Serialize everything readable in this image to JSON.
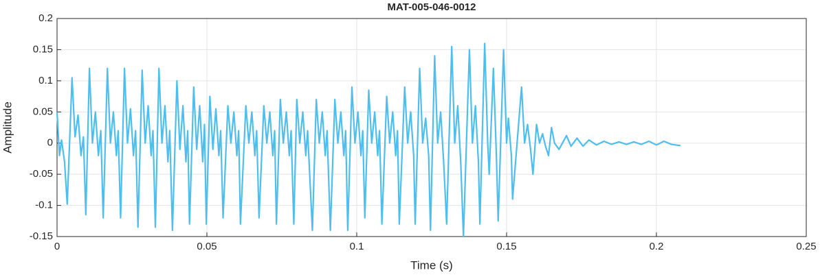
{
  "chart_data": {
    "type": "line",
    "title": "MAT-005-046-0012",
    "x_label": "Time (s)",
    "y_label": "Amplitude",
    "color": "#4dbeee",
    "grid": true,
    "xlim": [
      0,
      0.25
    ],
    "xticks": [
      0,
      0.05,
      0.1,
      0.15,
      0.2,
      0.25
    ],
    "ylim": [
      -0.15,
      0.2
    ],
    "yticks": [
      -0.15,
      -0.1,
      -0.05,
      0,
      0.05,
      0.1,
      0.15,
      0.2
    ],
    "x": [
      0,
      0.0008,
      0.0015,
      0.0025,
      0.0034,
      0.005,
      0.006,
      0.007,
      0.008,
      0.0088,
      0.0096,
      0.0108,
      0.0118,
      0.0128,
      0.0138,
      0.0146,
      0.0154,
      0.0168,
      0.0178,
      0.0188,
      0.0198,
      0.0204,
      0.0212,
      0.0225,
      0.0235,
      0.0245,
      0.0255,
      0.0262,
      0.027,
      0.0284,
      0.0294,
      0.0304,
      0.0314,
      0.032,
      0.0328,
      0.034,
      0.035,
      0.036,
      0.037,
      0.0376,
      0.0385,
      0.04,
      0.041,
      0.042,
      0.043,
      0.0436,
      0.0442,
      0.0456,
      0.0466,
      0.0476,
      0.0486,
      0.0492,
      0.0498,
      0.051,
      0.052,
      0.053,
      0.054,
      0.0546,
      0.0554,
      0.057,
      0.058,
      0.059,
      0.06,
      0.0606,
      0.0612,
      0.063,
      0.064,
      0.065,
      0.066,
      0.0666,
      0.0674,
      0.069,
      0.07,
      0.071,
      0.072,
      0.0726,
      0.0732,
      0.0745,
      0.0755,
      0.0765,
      0.0775,
      0.0781,
      0.079,
      0.08,
      0.081,
      0.082,
      0.083,
      0.0836,
      0.0852,
      0.0865,
      0.0875,
      0.0885,
      0.0895,
      0.0901,
      0.0912,
      0.0927,
      0.0937,
      0.0947,
      0.0957,
      0.0963,
      0.097,
      0.0984,
      0.0994,
      0.1004,
      0.1014,
      0.102,
      0.1027,
      0.104,
      0.105,
      0.106,
      0.107,
      0.1076,
      0.1084,
      0.11,
      0.111,
      0.112,
      0.113,
      0.1136,
      0.1142,
      0.116,
      0.117,
      0.118,
      0.119,
      0.1195,
      0.121,
      0.122,
      0.123,
      0.124,
      0.1246,
      0.126,
      0.127,
      0.128,
      0.129,
      0.13,
      0.1317,
      0.1327,
      0.1337,
      0.1347,
      0.1356,
      0.1376,
      0.1386,
      0.1396,
      0.1406,
      0.1411,
      0.1427,
      0.1437,
      0.1442,
      0.1456,
      0.1466,
      0.1472,
      0.149,
      0.15,
      0.1506,
      0.1516,
      0.152,
      0.155,
      0.156,
      0.157,
      0.158,
      0.1588,
      0.16,
      0.161,
      0.162,
      0.163,
      0.164,
      0.165,
      0.166,
      0.1675,
      0.17,
      0.1715,
      0.1735,
      0.1755,
      0.1775,
      0.18,
      0.1825,
      0.185,
      0.1875,
      0.19,
      0.1925,
      0.195,
      0.1975,
      0.2,
      0.2025,
      0.205,
      0.208
    ],
    "values": [
      0.05,
      -0.02,
      0.005,
      -0.03,
      -0.098,
      0.105,
      0.01,
      0.045,
      -0.02,
      0.01,
      -0.115,
      0.12,
      0,
      0.05,
      -0.02,
      0.02,
      -0.12,
      0.12,
      0,
      0.05,
      -0.02,
      0.02,
      -0.12,
      0.12,
      0,
      0.055,
      -0.02,
      0.02,
      -0.135,
      0.117,
      0,
      0.06,
      -0.02,
      0.02,
      -0.135,
      0.12,
      0,
      0.06,
      -0.03,
      0.02,
      -0.14,
      0.1,
      -0.01,
      0.06,
      -0.03,
      0.02,
      -0.13,
      0.09,
      -0.01,
      0.06,
      -0.03,
      0.03,
      -0.13,
      0.075,
      -0.01,
      0.055,
      -0.02,
      0.02,
      -0.12,
      0.06,
      0,
      0.05,
      -0.02,
      0.02,
      -0.13,
      0.06,
      0,
      0.05,
      -0.02,
      0.02,
      -0.12,
      0.06,
      0,
      0.05,
      -0.02,
      0.02,
      -0.13,
      0.07,
      0,
      0.05,
      -0.02,
      0.02,
      -0.13,
      0.07,
      0,
      0.05,
      -0.02,
      0.02,
      -0.14,
      0.07,
      0,
      0.05,
      -0.02,
      0.02,
      -0.14,
      0.07,
      0,
      0.05,
      -0.02,
      0.02,
      -0.14,
      0.09,
      0,
      0.05,
      -0.02,
      0.02,
      -0.12,
      0.085,
      0,
      0.05,
      -0.02,
      0.02,
      -0.13,
      0.075,
      0,
      0.05,
      -0.02,
      0.02,
      -0.13,
      0.09,
      0,
      0.05,
      -0.02,
      -0.13,
      0.12,
      0,
      0.04,
      -0.02,
      -0.14,
      0.14,
      0,
      0.05,
      -0.03,
      -0.13,
      0.155,
      0,
      0.06,
      -0.03,
      -0.15,
      0.15,
      0,
      0.06,
      -0.03,
      -0.13,
      0.16,
      0,
      -0.05,
      0.12,
      -0.02,
      -0.125,
      0.15,
      0,
      0.04,
      -0.02,
      -0.09,
      0.09,
      0,
      0.03,
      -0.01,
      -0.05,
      0.03,
      0,
      0.015,
      -0.005,
      -0.02,
      0.025,
      0,
      -0.01,
      0.012,
      -0.005,
      0.008,
      -0.005,
      0.005,
      -0.003,
      0.003,
      -0.002,
      0.002,
      -0.002,
      0.002,
      -0.002,
      0.003,
      -0.003,
      0.003,
      -0.002,
      -0.004
    ]
  }
}
